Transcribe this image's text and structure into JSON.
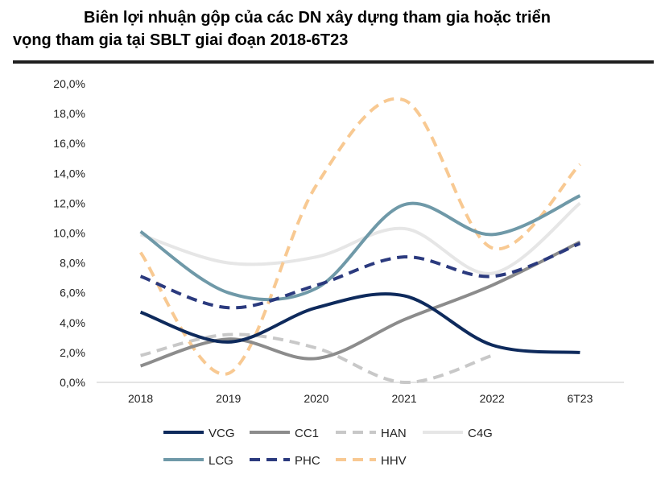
{
  "header": {
    "title_line1": "Biên lợi nhuận gộp của các DN xây dựng tham gia hoặc triển",
    "title_line2": "vọng tham gia tại SBLT giai đoạn 2018-6T23"
  },
  "chart_data": {
    "type": "line",
    "title": "Biên lợi nhuận gộp của các DN xây dựng tham gia hoặc triển vọng tham gia tại SBLT giai đoạn 2018-6T23",
    "categories": [
      "2018",
      "2019",
      "2020",
      "2021",
      "2022",
      "6T23"
    ],
    "y_ticks": [
      "0,0%",
      "2,0%",
      "4,0%",
      "6,0%",
      "8,0%",
      "10,0%",
      "12,0%",
      "14,0%",
      "16,0%",
      "18,0%",
      "20,0%"
    ],
    "ylim": [
      0,
      20
    ],
    "y_unit": "%",
    "grid": false,
    "smooth": true,
    "legend_position": "bottom",
    "series": [
      {
        "name": "VCG",
        "values": [
          4.7,
          2.7,
          5.0,
          5.8,
          2.5,
          2.0
        ],
        "color": "#0e2a5c",
        "dash": "solid"
      },
      {
        "name": "CC1",
        "values": [
          1.1,
          2.9,
          1.6,
          4.2,
          6.5,
          9.4
        ],
        "color": "#8c8c8c",
        "dash": "solid"
      },
      {
        "name": "HAN",
        "values": [
          1.8,
          3.2,
          2.3,
          0.0,
          1.8,
          null
        ],
        "color": "#c8c8c8",
        "dash": "dash"
      },
      {
        "name": "C4G",
        "values": [
          9.9,
          8.0,
          8.4,
          10.3,
          7.3,
          12.0
        ],
        "color": "#e6e6e6",
        "dash": "solid"
      },
      {
        "name": "LCG",
        "values": [
          10.1,
          6.0,
          6.3,
          11.9,
          9.9,
          12.5
        ],
        "color": "#6f99a8",
        "dash": "solid"
      },
      {
        "name": "PHC",
        "values": [
          7.1,
          5.0,
          6.5,
          8.4,
          7.1,
          9.3
        ],
        "color": "#2b3a7e",
        "dash": "dash"
      },
      {
        "name": "HHV",
        "values": [
          8.7,
          0.6,
          13.2,
          18.9,
          9.0,
          14.6
        ],
        "color": "#f8c992",
        "dash": "dash"
      }
    ]
  }
}
